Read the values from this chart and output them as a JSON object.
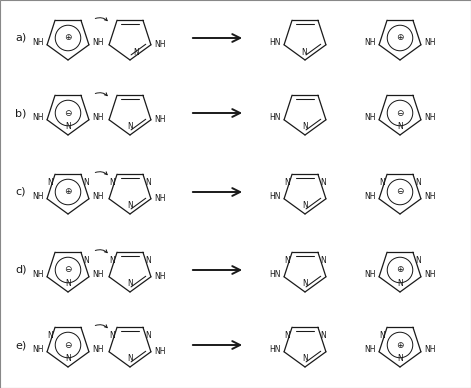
{
  "bg_color": "#ffffff",
  "line_color": "#1a1a1a",
  "row_labels": [
    "a)",
    "b)",
    "c)",
    "d)",
    "e)"
  ],
  "fig_width": 4.71,
  "fig_height": 3.88,
  "dpi": 100
}
